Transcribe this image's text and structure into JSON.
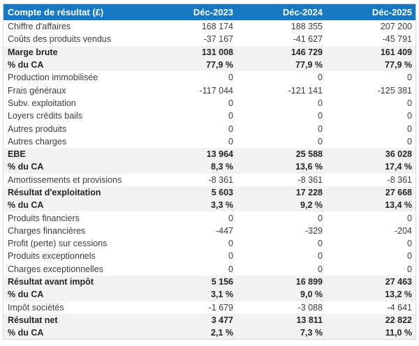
{
  "chart_data": {
    "type": "table",
    "title": "Compte de résultat (£)",
    "columns": [
      "Compte de résultat (£)",
      "Déc-2023",
      "Déc-2024",
      "Déc-2025"
    ],
    "rows": [
      {
        "label": "Chiffre d'affaires",
        "values": [
          "168 174",
          "188 355",
          "207 200"
        ],
        "emphasis": false
      },
      {
        "label": "Coûts des produits vendus",
        "values": [
          "-37 167",
          "-41 627",
          "-45 791"
        ],
        "emphasis": false
      },
      {
        "label": "Marge brute",
        "values": [
          "131 008",
          "146 729",
          "161 409"
        ],
        "emphasis": true
      },
      {
        "label": "% du CA",
        "values": [
          "77,9 %",
          "77,9 %",
          "77,9 %"
        ],
        "emphasis": true
      },
      {
        "label": "Production immobilisée",
        "values": [
          "0",
          "0",
          "0"
        ],
        "emphasis": false
      },
      {
        "label": "Frais généraux",
        "values": [
          "-117 044",
          "-121 141",
          "-125 381"
        ],
        "emphasis": false
      },
      {
        "label": "Subv. exploitation",
        "values": [
          "0",
          "0",
          "0"
        ],
        "emphasis": false
      },
      {
        "label": "Loyers crédits bails",
        "values": [
          "0",
          "0",
          "0"
        ],
        "emphasis": false
      },
      {
        "label": "Autres produits",
        "values": [
          "0",
          "0",
          "0"
        ],
        "emphasis": false
      },
      {
        "label": "Autres charges",
        "values": [
          "0",
          "0",
          "0"
        ],
        "emphasis": false
      },
      {
        "label": "EBE",
        "values": [
          "13 964",
          "25 588",
          "36 028"
        ],
        "emphasis": true
      },
      {
        "label": "% du CA",
        "values": [
          "8,3 %",
          "13,6 %",
          "17,4 %"
        ],
        "emphasis": true
      },
      {
        "label": "Amortissements et provisions",
        "values": [
          "-8 361",
          "-8 361",
          "-8 361"
        ],
        "emphasis": false
      },
      {
        "label": "Résultat d'exploitation",
        "values": [
          "5 603",
          "17 228",
          "27 668"
        ],
        "emphasis": true
      },
      {
        "label": "% du CA",
        "values": [
          "3,3 %",
          "9,2 %",
          "13,4 %"
        ],
        "emphasis": true
      },
      {
        "label": "Produits financiers",
        "values": [
          "0",
          "0",
          "0"
        ],
        "emphasis": false
      },
      {
        "label": "Charges financières",
        "values": [
          "-447",
          "-329",
          "-204"
        ],
        "emphasis": false
      },
      {
        "label": "Profit (perte) sur cessions",
        "values": [
          "0",
          "0",
          "0"
        ],
        "emphasis": false
      },
      {
        "label": "Produits exceptionnels",
        "values": [
          "0",
          "0",
          "0"
        ],
        "emphasis": false
      },
      {
        "label": "Charges exceptionnelles",
        "values": [
          "0",
          "0",
          "0"
        ],
        "emphasis": false
      },
      {
        "label": "Résultat avant impôt",
        "values": [
          "5 156",
          "16 899",
          "27 463"
        ],
        "emphasis": true
      },
      {
        "label": "% du CA",
        "values": [
          "3,1 %",
          "9,0 %",
          "13,2 %"
        ],
        "emphasis": true
      },
      {
        "label": "Impôt sociétés",
        "values": [
          "-1 679",
          "-3 088",
          "-4 641"
        ],
        "emphasis": false
      },
      {
        "label": "Résultat net",
        "values": [
          "3 477",
          "13 811",
          "22 822"
        ],
        "emphasis": true
      },
      {
        "label": "% du CA",
        "values": [
          "2,1 %",
          "7,3 %",
          "11,0 %"
        ],
        "emphasis": true
      }
    ],
    "layout": {
      "header_style": "blue-band",
      "emphasis_rows_background": "light-gray",
      "value_alignment": "right"
    }
  },
  "colors": {
    "header_bg": "#1779c4",
    "header_text": "#ffffff",
    "band_bg": "#f2f2f2",
    "row_bg": "#ffffff",
    "text": "#3c3c3c",
    "emphasis_text": "#262626",
    "border": "#d9d9d9"
  }
}
